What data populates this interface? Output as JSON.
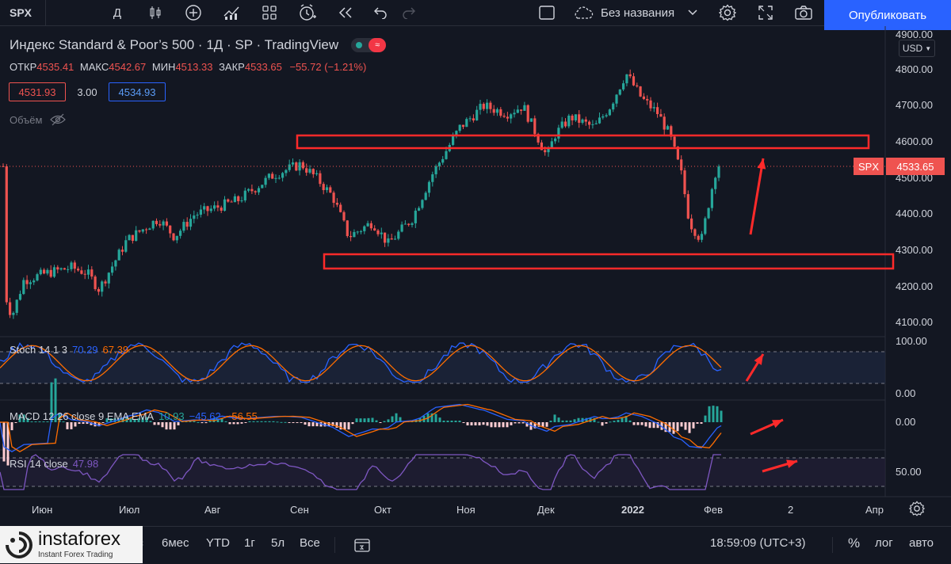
{
  "toolbar": {
    "symbol": "SPX",
    "interval": "Д",
    "layout_name": "Без названия",
    "publish_label": "Опубликовать"
  },
  "legend": {
    "title": "Индекс Standard & Poor’s 500 · 1Д · SP · TradingView",
    "open_label": "ОТКР",
    "open": "4535.41",
    "high_label": "МАКС",
    "high": "4542.67",
    "low_label": "МИН",
    "low": "4513.33",
    "close_label": "ЗАКР",
    "close": "4533.65",
    "change": "−55.72 (−1.21%)",
    "bid": "4531.93",
    "spread": "3.00",
    "ask": "4534.93",
    "volume_label": "Объём"
  },
  "price_axis": {
    "currency": "USD",
    "labels": [
      "4900.00",
      "4800.00",
      "4700.00",
      "4600.00",
      "4500.00",
      "4400.00",
      "4300.00",
      "4200.00",
      "4100.00"
    ],
    "symbol_tag": "SPX",
    "last_price": "4533.65"
  },
  "indicators": {
    "stoch": {
      "name": "Stoch 14 1 3",
      "k": "70.29",
      "d": "67.39",
      "axis": [
        "100.00",
        "0.00"
      ]
    },
    "macd": {
      "name": "MACD 12 26 close 9 EMA EMA",
      "hist": "10.93",
      "macd": "−45.62",
      "signal": "−56.55",
      "axis": [
        "0.00"
      ]
    },
    "rsi": {
      "name": "RSI 14 close",
      "value": "47.98",
      "axis": [
        "50.00"
      ]
    }
  },
  "time_axis": [
    "Июн",
    "Июл",
    "Авг",
    "Сен",
    "Окт",
    "Ноя",
    "Дек",
    "2022",
    "Фев",
    "2",
    "Апр"
  ],
  "bottom_bar": {
    "ranges": [
      "6мес",
      "YTD",
      "1г",
      "5л",
      "Все"
    ],
    "partial_range": "ес",
    "clock": "18:59:09 (UTC+3)",
    "percent": "%",
    "log": "лог",
    "auto": "авто"
  },
  "brand": {
    "name": "instaforex",
    "tagline": "Instant Forex Trading"
  },
  "colors": {
    "up": "#26a69a",
    "down": "#ef5350",
    "accent": "#2962ff",
    "annotation": "#ff2a2a",
    "background": "#131722"
  }
}
